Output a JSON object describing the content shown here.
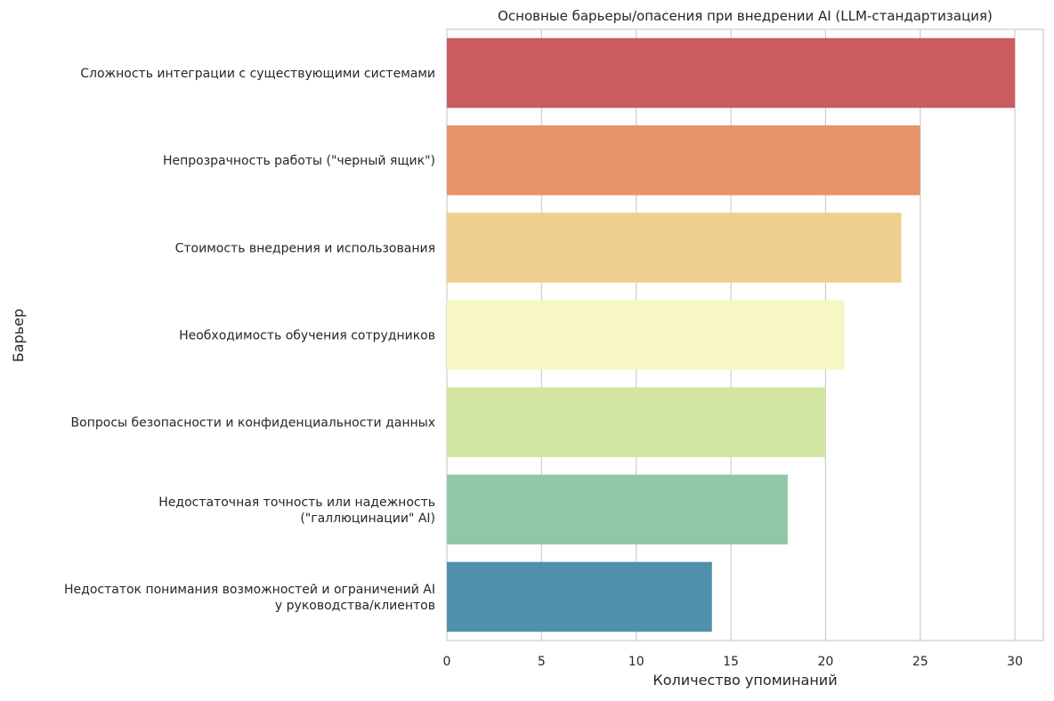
{
  "chart_data": {
    "type": "bar",
    "orientation": "horizontal",
    "title": "Основные барьеры/опасения при внедрении AI (LLM-стандартизация)",
    "xlabel": "Количество упоминаний",
    "ylabel": "Барьер",
    "xlim": [
      0,
      31.5
    ],
    "xticks": [
      0,
      5,
      10,
      15,
      20,
      25,
      30
    ],
    "grid": true,
    "categories": [
      [
        "Сложность интеграции с существующими системами"
      ],
      [
        "Непрозрачность работы (\"черный ящик\")"
      ],
      [
        "Стоимость внедрения и использования"
      ],
      [
        "Необходимость обучения сотрудников"
      ],
      [
        "Вопросы безопасности и конфиденциальности данных"
      ],
      [
        "Недостаточная точность или надежность",
        "(\"галлюцинации\" AI)"
      ],
      [
        "Недостаток понимания возможностей и ограничений AI",
        "у руководства/клиентов"
      ]
    ],
    "values": [
      30,
      25,
      24,
      21,
      20,
      18,
      14
    ],
    "colors": [
      "#cb5c5e",
      "#e69468",
      "#efcf8f",
      "#f7f7c5",
      "#d3e5a3",
      "#91c7a6",
      "#4f91ab"
    ]
  }
}
